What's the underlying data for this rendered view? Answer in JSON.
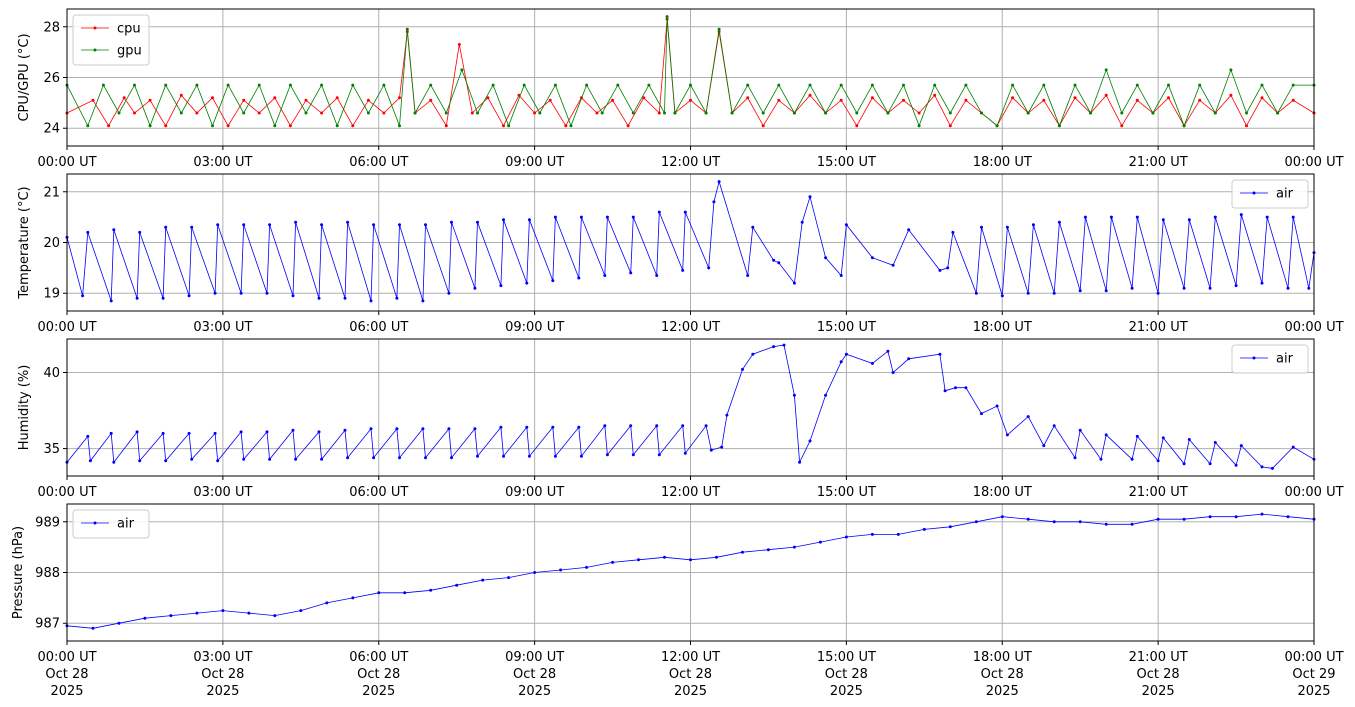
{
  "chart_data": [
    {
      "type": "line",
      "ylabel": "CPU/GPU (°C)",
      "xlim": [
        "2025-10-28T00:00Z",
        "2025-10-29T00:00Z"
      ],
      "ylim": [
        23.3,
        28.7
      ],
      "yticks": [
        24,
        26,
        28
      ],
      "x_tick_labels": [
        "00:00 UT",
        "03:00 UT",
        "06:00 UT",
        "09:00 UT",
        "12:00 UT",
        "15:00 UT",
        "18:00 UT",
        "21:00 UT",
        "00:00 UT"
      ],
      "grid": true,
      "legend": "top-left",
      "series": [
        {
          "name": "cpu",
          "color": "#ff0000",
          "x_hours": [
            0,
            0.5,
            0.8,
            1.1,
            1.3,
            1.6,
            1.9,
            2.2,
            2.5,
            2.8,
            3.1,
            3.4,
            3.7,
            4.0,
            4.3,
            4.6,
            4.9,
            5.2,
            5.5,
            5.8,
            6.1,
            6.4,
            6.55,
            6.7,
            7.0,
            7.3,
            7.55,
            7.8,
            8.1,
            8.4,
            8.7,
            9.0,
            9.3,
            9.6,
            9.9,
            10.2,
            10.5,
            10.8,
            11.1,
            11.4,
            11.55,
            11.7,
            12.0,
            12.3,
            12.55,
            12.8,
            13.1,
            13.4,
            13.7,
            14.0,
            14.3,
            14.6,
            14.9,
            15.2,
            15.5,
            15.8,
            16.1,
            16.4,
            16.7,
            17.0,
            17.3,
            17.6,
            17.9,
            18.2,
            18.5,
            18.8,
            19.1,
            19.4,
            19.7,
            20.0,
            20.3,
            20.6,
            20.9,
            21.2,
            21.5,
            21.8,
            22.1,
            22.4,
            22.7,
            23.0,
            23.3,
            23.6,
            24.0
          ],
          "values": [
            24.6,
            25.1,
            24.1,
            25.2,
            24.6,
            25.1,
            24.1,
            25.3,
            24.6,
            25.2,
            24.1,
            25.1,
            24.6,
            25.2,
            24.1,
            25.1,
            24.6,
            25.2,
            24.1,
            25.1,
            24.6,
            25.2,
            27.8,
            24.6,
            25.1,
            24.1,
            27.3,
            24.6,
            25.2,
            24.1,
            25.3,
            24.6,
            25.1,
            24.1,
            25.2,
            24.6,
            25.1,
            24.1,
            25.2,
            24.6,
            28.3,
            24.6,
            25.1,
            24.6,
            27.8,
            24.6,
            25.2,
            24.1,
            25.1,
            24.6,
            25.3,
            24.6,
            25.1,
            24.1,
            25.2,
            24.6,
            25.1,
            24.6,
            25.3,
            24.1,
            25.1,
            24.6,
            24.1,
            25.2,
            24.6,
            25.1,
            24.1,
            25.2,
            24.6,
            25.3,
            24.1,
            25.1,
            24.6,
            25.2,
            24.1,
            25.1,
            24.6,
            25.3,
            24.1,
            25.2,
            24.6,
            25.1,
            24.6
          ]
        },
        {
          "name": "gpu",
          "color": "#008000",
          "x_hours": [
            0,
            0.4,
            0.7,
            1.0,
            1.3,
            1.6,
            1.9,
            2.2,
            2.5,
            2.8,
            3.1,
            3.4,
            3.7,
            4.0,
            4.3,
            4.6,
            4.9,
            5.2,
            5.5,
            5.8,
            6.1,
            6.4,
            6.55,
            6.7,
            7.0,
            7.3,
            7.6,
            7.9,
            8.2,
            8.5,
            8.8,
            9.1,
            9.4,
            9.7,
            10.0,
            10.3,
            10.6,
            10.9,
            11.2,
            11.5,
            11.55,
            11.7,
            12.0,
            12.3,
            12.55,
            12.8,
            13.1,
            13.4,
            13.7,
            14.0,
            14.3,
            14.6,
            14.9,
            15.2,
            15.5,
            15.8,
            16.1,
            16.4,
            16.7,
            17.0,
            17.3,
            17.6,
            17.9,
            18.2,
            18.5,
            18.8,
            19.1,
            19.4,
            19.7,
            20.0,
            20.3,
            20.6,
            20.9,
            21.2,
            21.5,
            21.8,
            22.1,
            22.4,
            22.7,
            23.0,
            23.3,
            23.6,
            24.0
          ],
          "values": [
            25.7,
            24.1,
            25.7,
            24.6,
            25.7,
            24.1,
            25.7,
            24.6,
            25.7,
            24.1,
            25.7,
            24.6,
            25.7,
            24.1,
            25.7,
            24.6,
            25.7,
            24.1,
            25.7,
            24.6,
            25.7,
            24.1,
            27.9,
            24.6,
            25.7,
            24.6,
            26.3,
            24.6,
            25.7,
            24.1,
            25.7,
            24.6,
            25.7,
            24.1,
            25.7,
            24.6,
            25.7,
            24.6,
            25.7,
            24.6,
            28.4,
            24.6,
            25.7,
            24.6,
            27.9,
            24.6,
            25.7,
            24.6,
            25.7,
            24.6,
            25.7,
            24.6,
            25.7,
            24.6,
            25.7,
            24.6,
            25.7,
            24.1,
            25.7,
            24.6,
            25.7,
            24.6,
            24.1,
            25.7,
            24.6,
            25.7,
            24.1,
            25.7,
            24.6,
            26.3,
            24.6,
            25.7,
            24.6,
            25.7,
            24.1,
            25.7,
            24.6,
            26.3,
            24.6,
            25.7,
            24.6,
            25.7,
            25.7
          ]
        }
      ]
    },
    {
      "type": "line",
      "ylabel": "Temperature (°C)",
      "xlim": [
        "2025-10-28T00:00Z",
        "2025-10-29T00:00Z"
      ],
      "ylim": [
        18.65,
        21.35
      ],
      "yticks": [
        19,
        20,
        21
      ],
      "x_tick_labels": [
        "00:00 UT",
        "03:00 UT",
        "06:00 UT",
        "09:00 UT",
        "12:00 UT",
        "15:00 UT",
        "18:00 UT",
        "21:00 UT",
        "00:00 UT"
      ],
      "grid": true,
      "legend": "top-right",
      "series": [
        {
          "name": "air",
          "color": "#0000ff",
          "x_hours": [
            0,
            0.3,
            0.4,
            0.85,
            0.9,
            1.35,
            1.4,
            1.85,
            1.9,
            2.35,
            2.4,
            2.85,
            2.9,
            3.35,
            3.4,
            3.85,
            3.9,
            4.35,
            4.4,
            4.85,
            4.9,
            5.35,
            5.4,
            5.85,
            5.9,
            6.35,
            6.4,
            6.85,
            6.9,
            7.35,
            7.4,
            7.85,
            7.9,
            8.35,
            8.4,
            8.85,
            8.9,
            9.35,
            9.4,
            9.85,
            9.9,
            10.35,
            10.4,
            10.85,
            10.9,
            11.35,
            11.4,
            11.85,
            11.9,
            12.35,
            12.45,
            12.55,
            13.1,
            13.2,
            13.6,
            13.7,
            14.0,
            14.15,
            14.3,
            14.6,
            14.9,
            15.0,
            15.5,
            15.9,
            16.2,
            16.8,
            16.95,
            17.05,
            17.5,
            17.6,
            18.0,
            18.1,
            18.5,
            18.6,
            19.0,
            19.1,
            19.5,
            19.6,
            20.0,
            20.1,
            20.5,
            20.6,
            21.0,
            21.1,
            21.5,
            21.6,
            22.0,
            22.1,
            22.5,
            22.6,
            23.0,
            23.1,
            23.5,
            23.6,
            23.9,
            24.0
          ],
          "values": [
            20.1,
            18.95,
            20.2,
            18.85,
            20.25,
            18.9,
            20.2,
            18.9,
            20.3,
            18.95,
            20.3,
            19.0,
            20.35,
            19.0,
            20.35,
            19.0,
            20.35,
            18.95,
            20.4,
            18.9,
            20.35,
            18.9,
            20.4,
            18.85,
            20.35,
            18.9,
            20.35,
            18.85,
            20.35,
            19.0,
            20.4,
            19.1,
            20.4,
            19.15,
            20.45,
            19.2,
            20.45,
            19.25,
            20.5,
            19.3,
            20.5,
            19.35,
            20.5,
            19.4,
            20.5,
            19.35,
            20.6,
            19.45,
            20.6,
            19.5,
            20.8,
            21.2,
            19.35,
            20.3,
            19.65,
            19.6,
            19.2,
            20.4,
            20.9,
            19.7,
            19.35,
            20.35,
            19.7,
            19.55,
            20.25,
            19.45,
            19.5,
            20.2,
            19.0,
            20.3,
            18.95,
            20.3,
            19.0,
            20.35,
            19.0,
            20.4,
            19.05,
            20.5,
            19.05,
            20.5,
            19.1,
            20.5,
            19.0,
            20.45,
            19.1,
            20.45,
            19.1,
            20.5,
            19.15,
            20.55,
            19.2,
            20.5,
            19.1,
            20.5,
            19.1,
            19.8
          ]
        }
      ]
    },
    {
      "type": "line",
      "ylabel": "Humidity (%)",
      "xlim": [
        "2025-10-28T00:00Z",
        "2025-10-29T00:00Z"
      ],
      "ylim": [
        33.2,
        42.2
      ],
      "yticks": [
        35,
        40
      ],
      "x_tick_labels": [
        "00:00 UT",
        "03:00 UT",
        "06:00 UT",
        "09:00 UT",
        "12:00 UT",
        "15:00 UT",
        "18:00 UT",
        "21:00 UT",
        "00:00 UT"
      ],
      "grid": true,
      "legend": "top-right",
      "series": [
        {
          "name": "air",
          "color": "#0000ff",
          "x_hours": [
            0,
            0.4,
            0.45,
            0.85,
            0.9,
            1.35,
            1.4,
            1.85,
            1.9,
            2.35,
            2.4,
            2.85,
            2.9,
            3.35,
            3.4,
            3.85,
            3.9,
            4.35,
            4.4,
            4.85,
            4.9,
            5.35,
            5.4,
            5.85,
            5.9,
            6.35,
            6.4,
            6.85,
            6.9,
            7.35,
            7.4,
            7.85,
            7.9,
            8.35,
            8.4,
            8.85,
            8.9,
            9.35,
            9.4,
            9.85,
            9.9,
            10.35,
            10.4,
            10.85,
            10.9,
            11.35,
            11.4,
            11.85,
            11.9,
            12.3,
            12.4,
            12.6,
            12.7,
            13.0,
            13.2,
            13.6,
            13.8,
            14.0,
            14.1,
            14.3,
            14.6,
            14.9,
            15.0,
            15.5,
            15.8,
            15.9,
            16.2,
            16.8,
            16.9,
            17.1,
            17.3,
            17.6,
            17.9,
            18.1,
            18.5,
            18.8,
            19.0,
            19.4,
            19.5,
            19.9,
            20.0,
            20.5,
            20.6,
            21.0,
            21.1,
            21.5,
            21.6,
            22.0,
            22.1,
            22.5,
            22.6,
            23.0,
            23.2,
            23.6,
            24.0
          ],
          "values": [
            34.1,
            35.8,
            34.2,
            36.0,
            34.1,
            36.1,
            34.2,
            36.0,
            34.2,
            36.0,
            34.3,
            36.0,
            34.2,
            36.1,
            34.3,
            36.1,
            34.3,
            36.2,
            34.3,
            36.1,
            34.3,
            36.2,
            34.4,
            36.3,
            34.4,
            36.3,
            34.4,
            36.3,
            34.4,
            36.3,
            34.4,
            36.3,
            34.5,
            36.4,
            34.5,
            36.4,
            34.5,
            36.4,
            34.5,
            36.4,
            34.5,
            36.5,
            34.6,
            36.5,
            34.6,
            36.5,
            34.6,
            36.5,
            34.7,
            36.5,
            34.9,
            35.1,
            37.2,
            40.2,
            41.2,
            41.7,
            41.8,
            38.5,
            34.1,
            35.5,
            38.5,
            40.7,
            41.2,
            40.6,
            41.4,
            40.0,
            40.9,
            41.2,
            38.8,
            39.0,
            39.0,
            37.3,
            37.8,
            35.9,
            37.1,
            35.2,
            36.5,
            34.4,
            36.2,
            34.3,
            35.9,
            34.3,
            35.8,
            34.2,
            35.7,
            34.0,
            35.6,
            34.0,
            35.4,
            33.9,
            35.2,
            33.8,
            33.7,
            35.1,
            34.3
          ]
        }
      ]
    },
    {
      "type": "line",
      "ylabel": "Pressure (hPa)",
      "xlim": [
        "2025-10-28T00:00Z",
        "2025-10-29T00:00Z"
      ],
      "ylim": [
        986.65,
        989.35
      ],
      "yticks": [
        987,
        988,
        989
      ],
      "x_tick_labels": [
        "00:00 UT\nOct 28\n2025",
        "03:00 UT\nOct 28\n2025",
        "06:00 UT\nOct 28\n2025",
        "09:00 UT\nOct 28\n2025",
        "12:00 UT\nOct 28\n2025",
        "15:00 UT\nOct 28\n2025",
        "18:00 UT\nOct 28\n2025",
        "21:00 UT\nOct 28\n2025",
        "00:00 UT\nOct 29\n2025"
      ],
      "grid": true,
      "legend": "top-left",
      "series": [
        {
          "name": "air",
          "color": "#0000ff",
          "x_hours": [
            0,
            0.5,
            1.0,
            1.5,
            2.0,
            2.5,
            3.0,
            3.5,
            4.0,
            4.5,
            5.0,
            5.5,
            6.0,
            6.5,
            7.0,
            7.5,
            8.0,
            8.5,
            9.0,
            9.5,
            10.0,
            10.5,
            11.0,
            11.5,
            12.0,
            12.5,
            13.0,
            13.5,
            14.0,
            14.5,
            15.0,
            15.5,
            16.0,
            16.5,
            17.0,
            17.5,
            18.0,
            18.5,
            19.0,
            19.5,
            20.0,
            20.5,
            21.0,
            21.5,
            22.0,
            22.5,
            23.0,
            23.5,
            24.0
          ],
          "values": [
            986.95,
            986.9,
            987.0,
            987.1,
            987.15,
            987.2,
            987.25,
            987.2,
            987.15,
            987.25,
            987.4,
            987.5,
            987.6,
            987.6,
            987.65,
            987.75,
            987.85,
            987.9,
            988.0,
            988.05,
            988.1,
            988.2,
            988.25,
            988.3,
            988.25,
            988.3,
            988.4,
            988.45,
            988.5,
            988.6,
            988.7,
            988.75,
            988.75,
            988.85,
            988.9,
            989.0,
            989.1,
            989.05,
            989.0,
            989.0,
            988.95,
            988.95,
            989.05,
            989.05,
            989.1,
            989.1,
            989.15,
            989.1,
            989.05
          ]
        }
      ]
    }
  ]
}
